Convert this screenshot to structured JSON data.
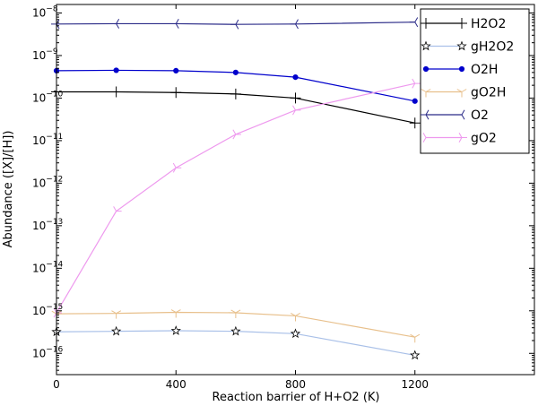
{
  "chart_data": {
    "type": "line",
    "xlabel": "Reaction barrier of H+O2 (K)",
    "ylabel": "Abundance ([X]/[H])",
    "xlim": [
      0,
      1600
    ],
    "ylim": [
      -16.5,
      -7.8
    ],
    "y_scale": "log",
    "x_ticks": [
      0,
      400,
      800,
      1200
    ],
    "y_ticks": [
      -16,
      -15,
      -14,
      -13,
      -12,
      -11,
      -10,
      -9,
      -8
    ],
    "grid": false,
    "legend_position": "top-right",
    "x": [
      0,
      200,
      400,
      600,
      800,
      1200
    ],
    "series": [
      {
        "name": "H2O2",
        "color": "#000000",
        "marker": "plus",
        "values": [
          1.4e-10,
          1.4e-10,
          1.35e-10,
          1.25e-10,
          1e-10,
          2.6e-11
        ]
      },
      {
        "name": "gH2O2",
        "color": "#a9c0e8",
        "marker": "star",
        "values": [
          3.2e-16,
          3.3e-16,
          3.4e-16,
          3.3e-16,
          2.9e-16,
          9e-17
        ]
      },
      {
        "name": "O2H",
        "color": "#0000cc",
        "marker": "dot",
        "values": [
          4.4e-10,
          4.5e-10,
          4.4e-10,
          4e-10,
          3.1e-10,
          8.5e-11
        ]
      },
      {
        "name": "gO2H",
        "color": "#e8c08c",
        "marker": "tri_down",
        "values": [
          8.5e-16,
          8.7e-16,
          9.2e-16,
          9e-16,
          7.6e-16,
          2.4e-16
        ]
      },
      {
        "name": "O2",
        "color": "#2b2b88",
        "marker": "tri_left",
        "values": [
          5.5e-09,
          5.6e-09,
          5.6e-09,
          5.4e-09,
          5.5e-09,
          6.1e-09
        ]
      },
      {
        "name": "gO2",
        "color": "#ee99ee",
        "marker": "tri_right",
        "values": [
          9e-16,
          2.2e-13,
          2.3e-12,
          1.4e-11,
          5.2e-11,
          2.2e-10
        ]
      }
    ]
  }
}
